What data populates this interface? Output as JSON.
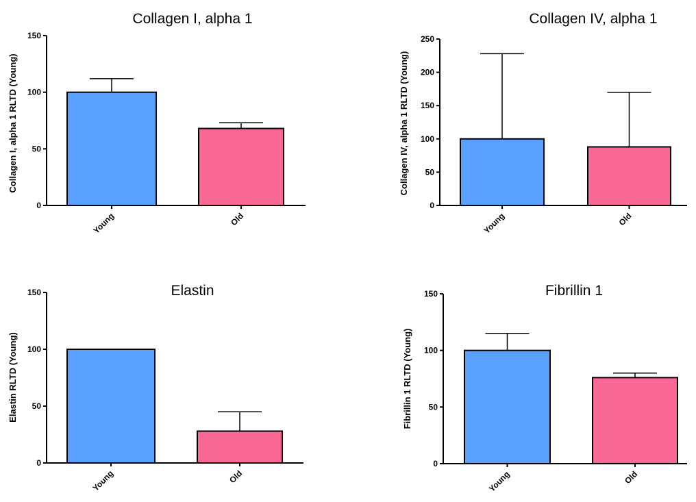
{
  "colors": {
    "Young": "#5aa0ff",
    "Old": "#fa6896",
    "axis": "#000000"
  },
  "chart_data": [
    {
      "type": "bar",
      "title": "Collagen I, alpha 1",
      "ylabel": "Collagen I, alpha 1 RLTD (Young)",
      "categories": [
        "Young",
        "Old"
      ],
      "values": [
        100,
        68
      ],
      "error": [
        12,
        5
      ],
      "ylim": [
        0,
        150
      ],
      "yticks": [
        0,
        50,
        100,
        150
      ]
    },
    {
      "type": "bar",
      "title": "Collagen IV, alpha 1",
      "ylabel": "Collagen IV, alpha 1 RLTD (Young)",
      "categories": [
        "Young",
        "Old"
      ],
      "values": [
        100,
        88
      ],
      "error": [
        128,
        82
      ],
      "ylim": [
        0,
        250
      ],
      "yticks": [
        0,
        50,
        100,
        150,
        200,
        250
      ]
    },
    {
      "type": "bar",
      "title": "Elastin",
      "ylabel": "Elastin RLTD (Young)",
      "categories": [
        "Young",
        "Old"
      ],
      "values": [
        100,
        28
      ],
      "error": [
        0,
        17
      ],
      "ylim": [
        0,
        150
      ],
      "yticks": [
        0,
        50,
        100,
        150
      ]
    },
    {
      "type": "bar",
      "title": "Fibrillin 1",
      "ylabel": "Fibrillin 1 RLTD (Young)",
      "categories": [
        "Young",
        "Old"
      ],
      "values": [
        100,
        76
      ],
      "error": [
        15,
        4
      ],
      "ylim": [
        0,
        150
      ],
      "yticks": [
        0,
        50,
        100,
        150
      ]
    }
  ]
}
